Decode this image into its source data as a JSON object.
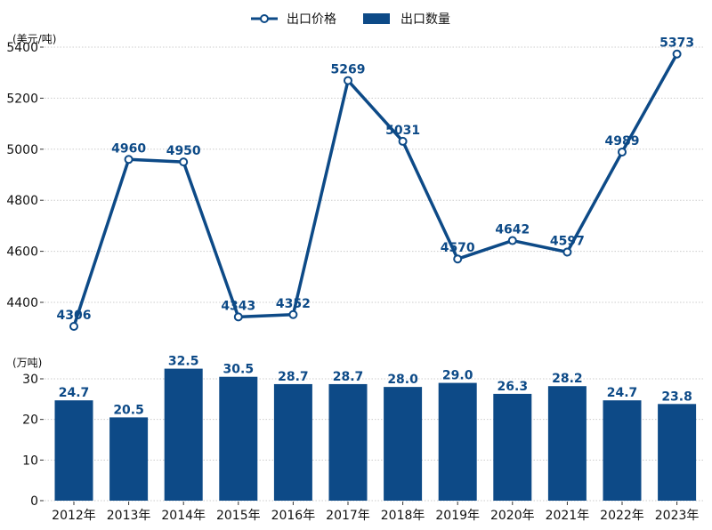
{
  "chart_data": {
    "type": "line+bar",
    "legend": {
      "position": "top-center",
      "entries": [
        "出口价格",
        "出口数量"
      ]
    },
    "color": "#0d4a87",
    "categories": [
      "2012年",
      "2013年",
      "2014年",
      "2015年",
      "2016年",
      "2017年",
      "2018年",
      "2019年",
      "2020年",
      "2021年",
      "2022年",
      "2023年"
    ],
    "price": {
      "name": "出口价格",
      "unit": "(美元/吨)",
      "values": [
        4306,
        4960,
        4950,
        4343,
        4352,
        5269,
        5031,
        4570,
        4642,
        4597,
        4989,
        5373
      ],
      "ylim": [
        4400,
        5400
      ],
      "yticks": [
        4400,
        4600,
        4800,
        5000,
        5200,
        5400
      ]
    },
    "quantity": {
      "name": "出口数量",
      "unit": "(万吨)",
      "values": [
        24.7,
        20.5,
        32.5,
        30.5,
        28.7,
        28.7,
        28.0,
        29.0,
        26.3,
        28.2,
        24.7,
        23.8
      ],
      "labels": [
        "24.7",
        "20.5",
        "32.5",
        "30.5",
        "28.7",
        "28.7",
        "28.0",
        "29.0",
        "26.3",
        "28.2",
        "24.7",
        "23.8"
      ],
      "ylim": [
        0,
        30
      ],
      "yticks": [
        0,
        10,
        20,
        30
      ]
    }
  }
}
